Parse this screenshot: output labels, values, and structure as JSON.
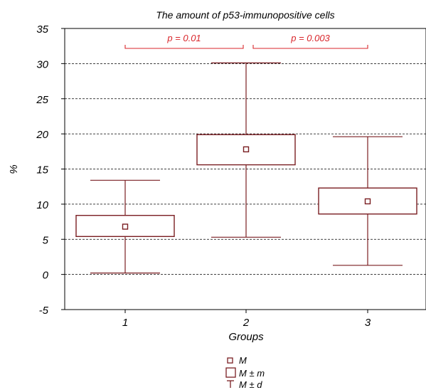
{
  "chart_data": {
    "type": "box",
    "title": "The amount of p53-immunopositive cells",
    "xlabel": "Groups",
    "ylabel": "%",
    "ylim": [
      -5,
      35
    ],
    "yticks": [
      "-5",
      "0",
      "5",
      "10",
      "15",
      "20",
      "25",
      "30",
      "35"
    ],
    "grid": "horizontal dashed",
    "categories": [
      "1",
      "2",
      "3"
    ],
    "groups": [
      {
        "category": "1",
        "mean": 6.8,
        "mean_minus_m": 5.4,
        "mean_plus_m": 8.4,
        "mean_minus_d": 0.2,
        "mean_plus_d": 13.4
      },
      {
        "category": "2",
        "mean": 17.8,
        "mean_minus_m": 15.6,
        "mean_plus_m": 19.9,
        "mean_minus_d": 5.3,
        "mean_plus_d": 30.1
      },
      {
        "category": "3",
        "mean": 10.4,
        "mean_minus_m": 8.6,
        "mean_plus_m": 12.3,
        "mean_minus_d": 1.3,
        "mean_plus_d": 19.6
      }
    ],
    "annotations": [
      {
        "from": "1",
        "to": "2",
        "text": "p = 0.01"
      },
      {
        "from": "2",
        "to": "3",
        "text": "p = 0.003"
      }
    ],
    "legend": {
      "position": "bottom-center",
      "items": [
        {
          "symbol": "small-square",
          "label": "M"
        },
        {
          "symbol": "box",
          "label": "M ± m"
        },
        {
          "symbol": "whisker",
          "label": "M ± d"
        }
      ]
    },
    "colors": {
      "series": "#7a1e22",
      "annotation": "#d9262b",
      "axis": "#000000"
    }
  }
}
